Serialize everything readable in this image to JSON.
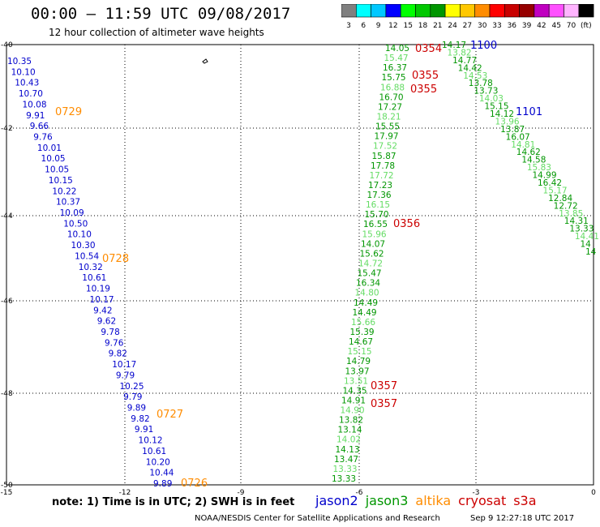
{
  "header": {
    "title": "00:00 — 11:59 UTC 09/08/2017",
    "subtitle": "12 hour collection of altimeter wave heights"
  },
  "colorbar": {
    "unit_label": "(ft)",
    "swatches": [
      {
        "color": "#808080",
        "label": "3"
      },
      {
        "color": "#00ffff",
        "label": "6"
      },
      {
        "color": "#00c8ff",
        "label": "9"
      },
      {
        "color": "#0000ff",
        "label": "12"
      },
      {
        "color": "#00ff00",
        "label": "15"
      },
      {
        "color": "#00c800",
        "label": "18"
      },
      {
        "color": "#009600",
        "label": "21"
      },
      {
        "color": "#ffff00",
        "label": "24"
      },
      {
        "color": "#ffc800",
        "label": "27"
      },
      {
        "color": "#ff8c00",
        "label": "30"
      },
      {
        "color": "#ff0000",
        "label": "33"
      },
      {
        "color": "#c80000",
        "label": "36"
      },
      {
        "color": "#960000",
        "label": "39"
      },
      {
        "color": "#c000c0",
        "label": "42"
      },
      {
        "color": "#ff50ff",
        "label": "45"
      },
      {
        "color": "#ffb4ff",
        "label": "70"
      },
      {
        "color": "#000000",
        "label": ""
      }
    ]
  },
  "axes": {
    "lon_ticks": [
      "-15",
      "-12",
      "-9",
      "-6",
      "-3",
      "0"
    ],
    "lat_ticks": [
      "-40",
      "-42",
      "-44",
      "-46",
      "-48",
      "-50"
    ]
  },
  "colors": {
    "jason2": "#0000cc",
    "jason3": "#009600",
    "jason3_light": "#64dc64",
    "altika": "#ff8c00",
    "cryosat": "#cc0000"
  },
  "tracks": {
    "track_a": {
      "values": [
        "10.35",
        "10.10",
        "10.43",
        "10.70",
        "10.08",
        "9.91",
        "9.66",
        "9.76",
        "10.01",
        "10.05",
        "10.05",
        "10.15",
        "10.22",
        "10.37",
        "10.09",
        "10.50",
        "10.10",
        "10.30",
        "10.54",
        "10.32",
        "10.61",
        "10.19",
        "10.17",
        "9.42",
        "9.62",
        "9.78",
        "9.76",
        "9.82",
        "10.17",
        "9.79",
        "10.25",
        "9.79",
        "9.89",
        "9.82",
        "9.91",
        "10.12",
        "10.61",
        "10.20",
        "10.44",
        "9.89"
      ],
      "time_tags": [
        "0729",
        "0728",
        "0727",
        "0726"
      ]
    },
    "track_b": {
      "values": [
        "14.05",
        "15.47",
        "16.37",
        "15.75",
        "16.88",
        "16.70",
        "17.27",
        "18.21",
        "15.55",
        "17.97",
        "17.52",
        "15.87",
        "17.78",
        "17.72",
        "17.23",
        "17.36",
        "16.15",
        "15.70",
        "16.55",
        "15.96",
        "14.07",
        "15.62",
        "14.72",
        "15.47",
        "16.34",
        "14.80",
        "14.49",
        "14.49",
        "15.66",
        "15.39",
        "14.67",
        "15.15",
        "14.79",
        "13.97",
        "13.51",
        "14.35",
        "14.91",
        "14.90",
        "13.82",
        "13.14",
        "14.02",
        "14.13",
        "13.47",
        "13.33",
        "13.33"
      ],
      "time_tags": [
        "0354",
        "0355",
        "0355",
        "0356",
        "0357",
        "0357"
      ]
    },
    "track_c": {
      "values": [
        "14.17",
        "13.82",
        "14.77",
        "14.42",
        "14.53",
        "13.78",
        "13.73",
        "14.03",
        "15.15",
        "14.12",
        "13.96",
        "13.87",
        "16.07",
        "14.81",
        "14.62",
        "14.58",
        "15.83",
        "14.99",
        "16.42",
        "15.17",
        "12.84",
        "12.72",
        "13.85",
        "14.31",
        "13.33",
        "14.41",
        "14",
        "14"
      ],
      "time_tags": [
        "1100",
        "1101"
      ]
    }
  },
  "footer": {
    "note": "note:  1) Time is in UTC;  2) SWH is in feet",
    "legend": [
      {
        "label": "jason2",
        "color": "#0000cc"
      },
      {
        "label": "jason3",
        "color": "#009600"
      },
      {
        "label": "altika",
        "color": "#ff8c00"
      },
      {
        "label": "cryosat",
        "color": "#cc0000"
      },
      {
        "label": "s3a",
        "color": "#cc0000"
      }
    ],
    "credit": "NOAA/NESDIS Center for Satellite Applications and Research",
    "timestamp": "Sep  9 12:27:18 UTC 2017"
  }
}
